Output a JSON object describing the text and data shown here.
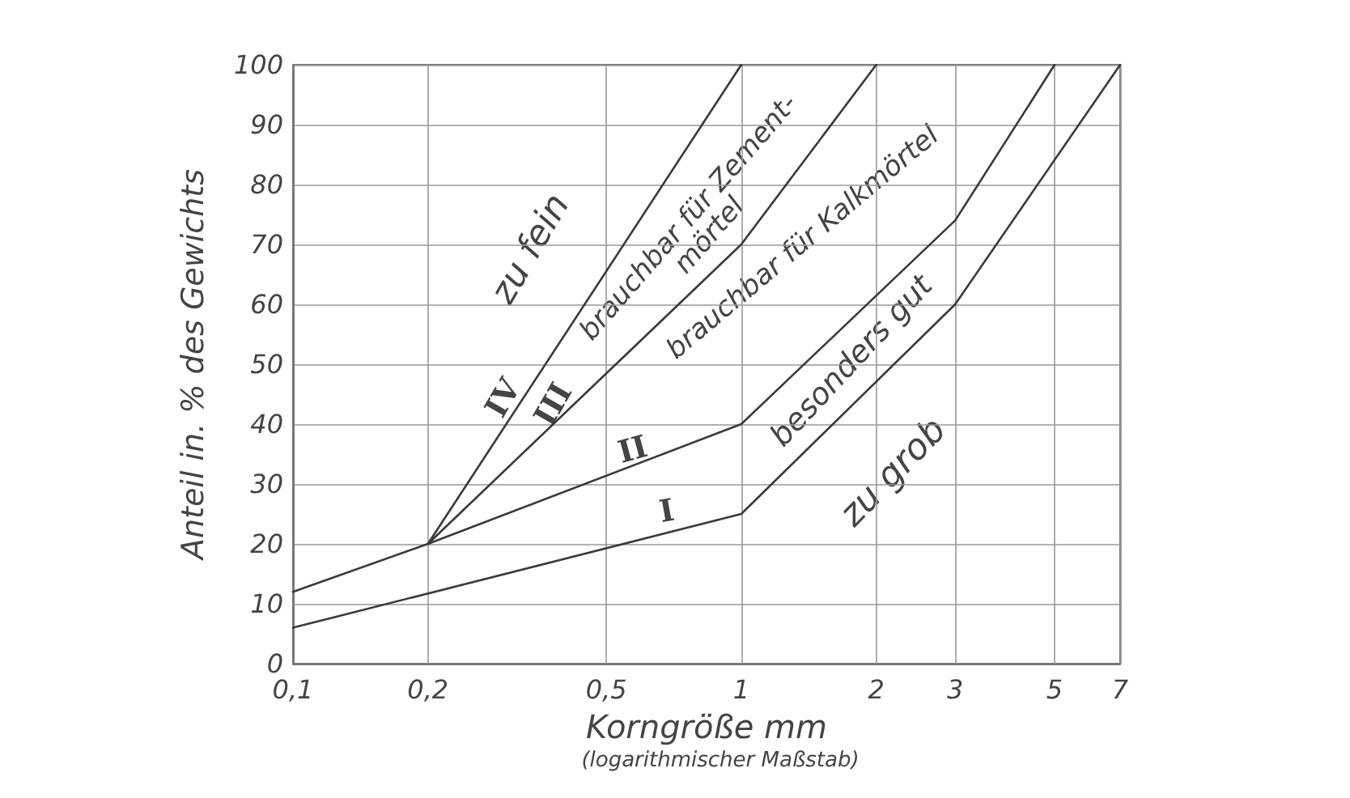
{
  "chart_data": {
    "type": "line",
    "xlabel": "Korngröße mm",
    "ylabel": "Anteil in. % des Gewichts",
    "log": "x",
    "grid": true,
    "legend": false,
    "marker": "none",
    "line_style": "solid",
    "xlim": [
      0.1,
      7
    ],
    "xticks": [
      {
        "value": 0.1,
        "label": "0,1"
      },
      {
        "value": 0.2,
        "label": "0,2"
      },
      {
        "value": 0.5,
        "label": "0,5"
      },
      1,
      2,
      3,
      5,
      7
    ],
    "ylim": [
      0,
      100
    ],
    "yticks": [
      0,
      10,
      20,
      30,
      40,
      50,
      60,
      70,
      80,
      90,
      100
    ],
    "series": [
      {
        "name": "I",
        "color": "#3a3a3a",
        "x": [
          0.1,
          1,
          3,
          7
        ],
        "values": [
          6,
          25,
          60,
          100
        ]
      },
      {
        "name": "II",
        "color": "#3a3a3a",
        "x": [
          0.1,
          0.2,
          1,
          3,
          5
        ],
        "values": [
          12,
          20,
          40,
          74,
          100
        ]
      },
      {
        "name": "III",
        "color": "#3a3a3a",
        "x": [
          0.2,
          1,
          2
        ],
        "values": [
          20,
          70,
          100
        ]
      },
      {
        "name": "IV",
        "color": "#3a3a3a",
        "x": [
          0.2,
          1
        ],
        "values": [
          20,
          100
        ]
      }
    ],
    "annotations": [
      "zu fein",
      "brauchbar für Zement-\nmörtel",
      "brauchbar für Kalkmörtel",
      "besonders gut",
      "zu grob",
      "(logarithmischer Maßstab)"
    ]
  }
}
